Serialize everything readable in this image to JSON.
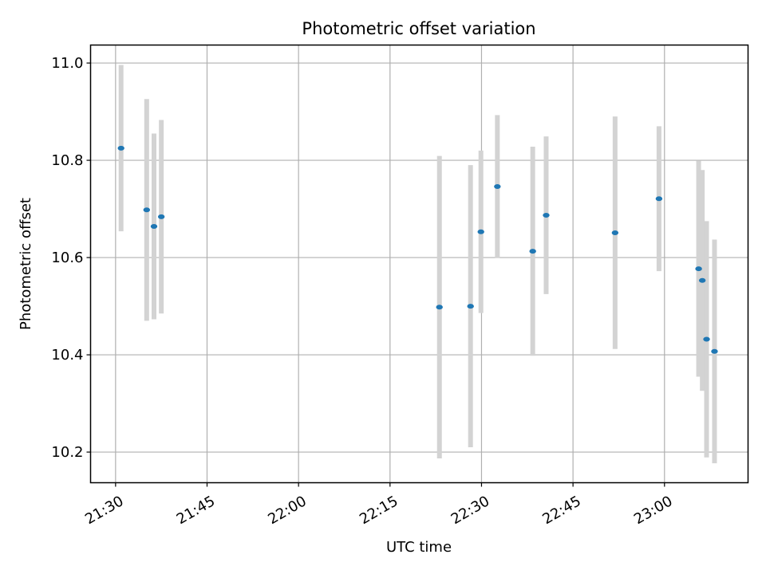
{
  "chart_data": {
    "type": "scatter",
    "title": "Photometric offset variation",
    "xlabel": "UTC time",
    "ylabel": "Photometric offset",
    "x_ticks": [
      "21:30",
      "21:45",
      "22:00",
      "22:15",
      "22:30",
      "22:45",
      "23:00"
    ],
    "x_tick_minutes": [
      0,
      15,
      30,
      45,
      60,
      75,
      90
    ],
    "y_ticks": [
      "10.2",
      "10.4",
      "10.6",
      "10.8",
      "11.0"
    ],
    "xlim": [
      "21:25.9",
      "23:13.7"
    ],
    "ylim": [
      10.137,
      11.037
    ],
    "grid": true,
    "marker_color": "#1f77b4",
    "errorbar_color": "#d3d3d3",
    "points": [
      {
        "time": "21:30.9",
        "value": 10.825,
        "err": 0.171
      },
      {
        "time": "21:35.1",
        "value": 10.698,
        "err": 0.228
      },
      {
        "time": "21:36.3",
        "value": 10.664,
        "err": 0.191
      },
      {
        "time": "21:37.5",
        "value": 10.684,
        "err": 0.199
      },
      {
        "time": "22:23.1",
        "value": 10.498,
        "err": 0.311
      },
      {
        "time": "22:28.2",
        "value": 10.5,
        "err": 0.29
      },
      {
        "time": "22:29.9",
        "value": 10.653,
        "err": 0.167
      },
      {
        "time": "22:32.6",
        "value": 10.746,
        "err": 0.147
      },
      {
        "time": "22:38.4",
        "value": 10.613,
        "err": 0.215
      },
      {
        "time": "22:40.6",
        "value": 10.687,
        "err": 0.162
      },
      {
        "time": "22:51.9",
        "value": 10.651,
        "err": 0.239
      },
      {
        "time": "22:59.1",
        "value": 10.721,
        "err": 0.149
      },
      {
        "time": "23:05.6",
        "value": 10.577,
        "err": 0.222
      },
      {
        "time": "23:06.2",
        "value": 10.553,
        "err": 0.227
      },
      {
        "time": "23:06.9",
        "value": 10.432,
        "err": 0.243
      },
      {
        "time": "23:08.2",
        "value": 10.407,
        "err": 0.23
      }
    ]
  }
}
